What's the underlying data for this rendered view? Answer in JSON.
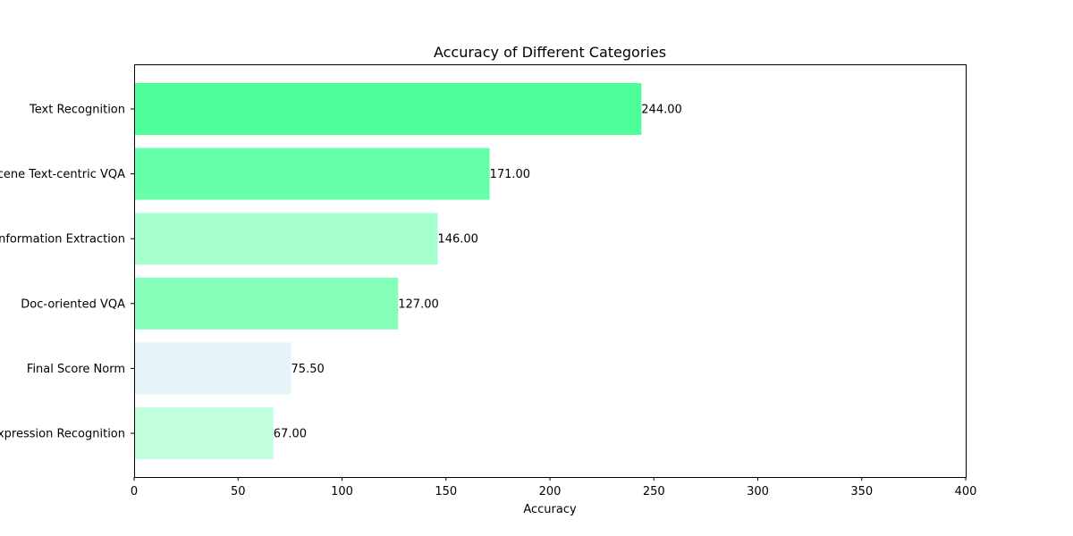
{
  "chart_data": {
    "type": "bar",
    "orientation": "horizontal",
    "title": "Accuracy of Different Categories",
    "xlabel": "Accuracy",
    "ylabel": "",
    "xlim": [
      0,
      400
    ],
    "xticks": [
      0,
      50,
      100,
      150,
      200,
      250,
      300,
      350,
      400
    ],
    "grid": false,
    "categories": [
      "Text Recognition",
      "Scene Text-centric VQA",
      "Key Information Extraction",
      "Doc-oriented VQA",
      "Final Score Norm",
      "Handwritten Mathematical Expression Recognition"
    ],
    "values": [
      244.0,
      171.0,
      146.0,
      127.0,
      75.5,
      67.0
    ],
    "value_labels": [
      "244.00",
      "171.00",
      "146.00",
      "127.00",
      "75.50",
      "67.00"
    ],
    "colors": [
      "#4dff99",
      "#66ffaa",
      "#a6ffcc",
      "#86ffbb",
      "#e6f4f9",
      "#c2ffdd"
    ]
  }
}
